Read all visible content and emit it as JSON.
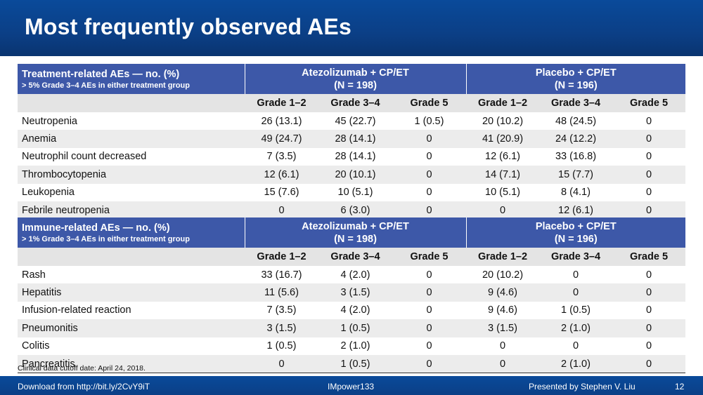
{
  "title": "Most frequently observed AEs",
  "column_groups": [
    {
      "name": "Atezolizumab + CP/ET",
      "n": "(N = 198)"
    },
    {
      "name": "Placebo + CP/ET",
      "n": "(N = 196)"
    }
  ],
  "grade_headers": [
    "Grade 1–2",
    "Grade 3–4",
    "Grade 5"
  ],
  "treatment_table": {
    "title": "Treatment-related AEs — no. (%)",
    "subtitle": "> 5% Grade 3–4 AEs in either treatment group",
    "rows": [
      {
        "label": "Neutropenia",
        "values": [
          "26 (13.1)",
          "45 (22.7)",
          "1 (0.5)",
          "20 (10.2)",
          "48 (24.5)",
          "0"
        ]
      },
      {
        "label": "Anemia",
        "values": [
          "49 (24.7)",
          "28 (14.1)",
          "0",
          "41 (20.9)",
          "24 (12.2)",
          "0"
        ]
      },
      {
        "label": "Neutrophil count decreased",
        "values": [
          "7 (3.5)",
          "28 (14.1)",
          "0",
          "12 (6.1)",
          "33 (16.8)",
          "0"
        ]
      },
      {
        "label": "Thrombocytopenia",
        "values": [
          "12 (6.1)",
          "20 (10.1)",
          "0",
          "14 (7.1)",
          "15 (7.7)",
          "0"
        ]
      },
      {
        "label": "Leukopenia",
        "values": [
          "15 (7.6)",
          "10 (5.1)",
          "0",
          "10 (5.1)",
          "8 (4.1)",
          "0"
        ]
      },
      {
        "label": "Febrile neutropenia",
        "values": [
          "0",
          "6 (3.0)",
          "0",
          "0",
          "12 (6.1)",
          "0"
        ]
      }
    ]
  },
  "immune_table": {
    "title": "Immune-related AEs — no. (%)",
    "subtitle": "> 1% Grade 3–4 AEs in either treatment group",
    "rows": [
      {
        "label": "Rash",
        "values": [
          "33 (16.7)",
          "4 (2.0)",
          "0",
          "20 (10.2)",
          "0",
          "0"
        ]
      },
      {
        "label": "Hepatitis",
        "values": [
          "11 (5.6)",
          "3 (1.5)",
          "0",
          "9 (4.6)",
          "0",
          "0"
        ]
      },
      {
        "label": "Infusion-related reaction",
        "values": [
          "7 (3.5)",
          "4 (2.0)",
          "0",
          "9 (4.6)",
          "1 (0.5)",
          "0"
        ]
      },
      {
        "label": "Pneumonitis",
        "values": [
          "3 (1.5)",
          "1 (0.5)",
          "0",
          "3 (1.5)",
          "2 (1.0)",
          "0"
        ]
      },
      {
        "label": "Colitis",
        "values": [
          "1 (0.5)",
          "2 (1.0)",
          "0",
          "0",
          "0",
          "0"
        ]
      },
      {
        "label": "Pancreatitis",
        "values": [
          "0",
          "1 (0.5)",
          "0",
          "0",
          "2 (1.0)",
          "0"
        ]
      }
    ]
  },
  "footnote": "Clinical data cutoff date: April 24, 2018.",
  "footer": {
    "left": "Download from http://bit.ly/2CvY9iT",
    "center": "IMpower133",
    "right": "Presented by Stephen V. Liu",
    "page": "12"
  }
}
